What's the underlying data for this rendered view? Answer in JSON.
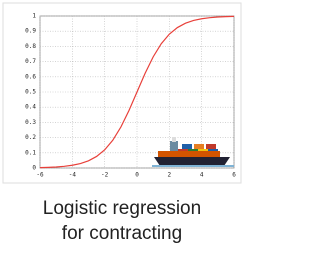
{
  "chart_data": {
    "type": "line",
    "title": [
      "Logistic regression",
      "for contracting"
    ],
    "x": [
      -6,
      -5.5,
      -5,
      -4.5,
      -4,
      -3.5,
      -3,
      -2.5,
      -2,
      -1.5,
      -1,
      -0.5,
      0,
      0.5,
      1,
      1.5,
      2,
      2.5,
      3,
      3.5,
      4,
      4.5,
      5,
      5.5,
      6
    ],
    "series": [
      {
        "color": "#e8403a",
        "values": [
          0.0025,
          0.0041,
          0.0067,
          0.011,
          0.018,
          0.0293,
          0.0474,
          0.0759,
          0.1192,
          0.1824,
          0.2689,
          0.3775,
          0.5,
          0.6225,
          0.7311,
          0.8176,
          0.8808,
          0.9241,
          0.9526,
          0.9707,
          0.982,
          0.989,
          0.9933,
          0.9959,
          0.9975
        ]
      }
    ],
    "xlim": [
      -6,
      6
    ],
    "xticks": [
      -6,
      -4,
      -2,
      0,
      2,
      4,
      6
    ],
    "ylim": [
      0,
      1
    ],
    "yticks": [
      0,
      0.1,
      0.2,
      0.3,
      0.4,
      0.5,
      0.6,
      0.7,
      0.8,
      0.9,
      1
    ],
    "grid": true
  }
}
